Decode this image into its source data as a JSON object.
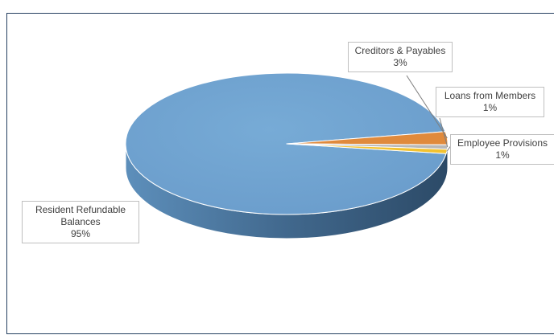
{
  "chart_data": {
    "type": "pie",
    "style": "3d-pie",
    "title": "",
    "legend": "none",
    "categories": [
      "Resident Refundable Balances",
      "Creditors & Payables",
      "Loans from Members",
      "Employee Provisions"
    ],
    "values": [
      95,
      3,
      1,
      1
    ],
    "unit": "%",
    "colors": [
      "#6fa3cf",
      "#e08a3c",
      "#b8b8b8",
      "#f2c230"
    ],
    "labels": [
      {
        "name_lines": [
          "Resident Refundable",
          "Balances"
        ],
        "value_text": "95%"
      },
      {
        "name_lines": [
          "Creditors & Payables"
        ],
        "value_text": "3%"
      },
      {
        "name_lines": [
          "Loans from Members"
        ],
        "value_text": "1%"
      },
      {
        "name_lines": [
          "Employee Provisions"
        ],
        "value_text": "1%"
      }
    ]
  }
}
